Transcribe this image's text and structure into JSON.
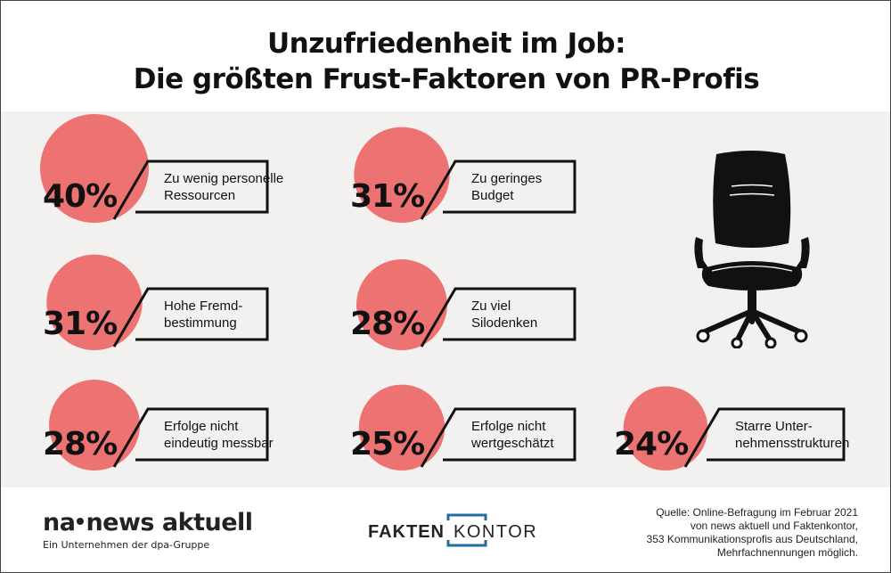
{
  "title": {
    "line1": "Unzufriedenheit im Job:",
    "line2": "Die größten Frust-Faktoren von PR-Profis"
  },
  "chart_data": {
    "type": "bubble",
    "unit": "%",
    "items": [
      {
        "value": 40,
        "value_label": "40%",
        "label_lines": [
          "Zu wenig personelle",
          "Ressourcen"
        ]
      },
      {
        "value": 31,
        "value_label": "31%",
        "label_lines": [
          "Zu geringes",
          "Budget"
        ]
      },
      {
        "value": 31,
        "value_label": "31%",
        "label_lines": [
          "Hohe Fremd-",
          "bestimmung"
        ]
      },
      {
        "value": 28,
        "value_label": "28%",
        "label_lines": [
          "Zu viel",
          "Silodenken"
        ]
      },
      {
        "value": 28,
        "value_label": "28%",
        "label_lines": [
          "Erfolge nicht",
          "eindeutig messbar"
        ]
      },
      {
        "value": 25,
        "value_label": "25%",
        "label_lines": [
          "Erfolge nicht",
          "wertgeschätzt"
        ]
      },
      {
        "value": 24,
        "value_label": "24%",
        "label_lines": [
          "Starre Unter-",
          "nehmensstrukturen"
        ]
      }
    ]
  },
  "colors": {
    "bubble": "#ec7372",
    "panel_bg": "#f3f1ef",
    "text": "#111111",
    "faktenkontor_blue": "#1f6d9c"
  },
  "icons": {
    "illustration": "office-chair-icon"
  },
  "footer": {
    "logo_left": "news aktuell",
    "logo_left_prefix": "na",
    "logo_left_tagline": "Ein Unternehmen der dpa-Gruppe",
    "logo_center_bold": "FAKTEN",
    "logo_center_light": "KONTOR",
    "source_lines": [
      "Quelle: Online-Befragung im Februar 2021",
      "von news aktuell und Faktenkontor,",
      "353 Kommunikationsprofis aus Deutschland,",
      "Mehrfachnennungen möglich."
    ]
  }
}
